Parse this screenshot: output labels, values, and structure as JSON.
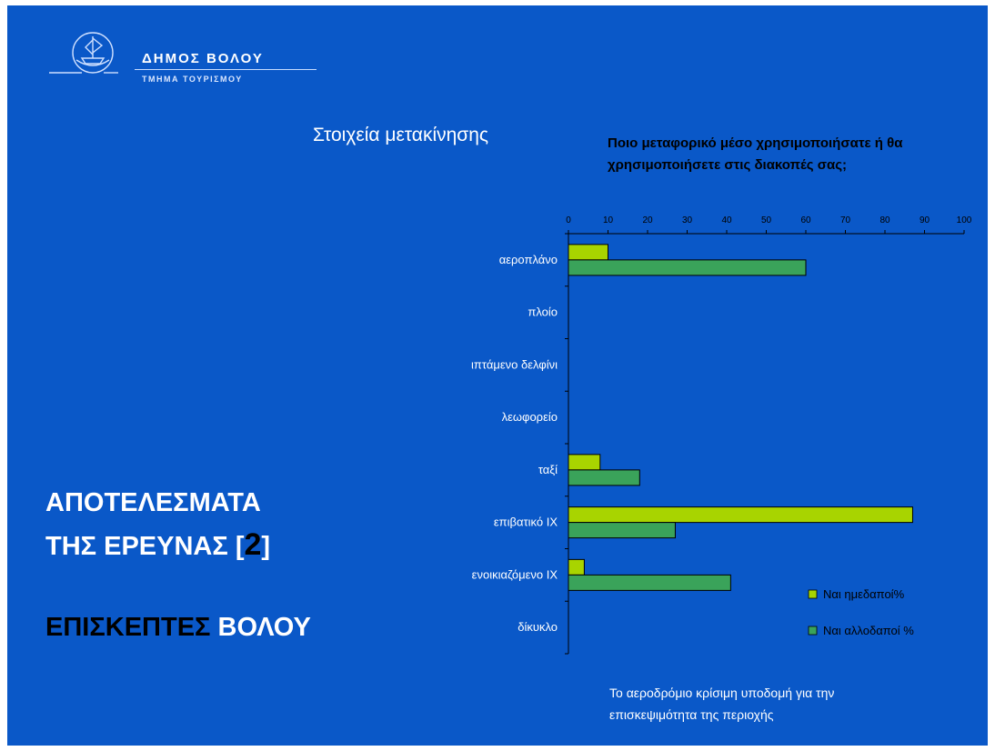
{
  "header": {
    "org_name": "ΔΗΜΟΣ ΒΟΛΟΥ",
    "org_dept": "ΤΜΗΜΑ ΤΟΥΡΙΣΜΟΥ",
    "logo_icon": "ship-emblem-icon"
  },
  "section_title": "Στοιχεία μετακίνησης",
  "results_title": {
    "line1": "ΑΠΟΤΕΛΕΣΜΑΤΑ",
    "line2_prefix": "ΤΗΣ ΕΡΕΥΝΑΣ [",
    "line2_number": "2",
    "line2_suffix": "]"
  },
  "visitors_title": {
    "part1": "ΕΠΙΣΚΕΠΤΕΣ",
    "part2": "ΒΟΛΟΥ"
  },
  "footer_note": "Το αεροδρόμιο κρίσιμη υποδομή για την επισκεψιμότητα της περιοχής",
  "colors": {
    "background": "#0a58c8",
    "series_domestic": "#a8d400",
    "series_foreign": "#3aa35a"
  },
  "chart_data": {
    "type": "bar",
    "orientation": "horizontal",
    "title": "Ποιο μεταφορικό μέσο χρησιμοποιήσατε ή θα χρησιμοποιήσετε στις διακοπές σας;",
    "categories": [
      "αεροπλάνο",
      "πλοίο",
      "ιπτάμενο δελφίνι",
      "λεωφορείο",
      "ταξί",
      "επιβατικό ΙΧ",
      "ενοικιαζόμενο ΙΧ",
      "δίκυκλο"
    ],
    "series": [
      {
        "name": "Ναι  ημεδαποί%",
        "color": "#a8d400",
        "values": [
          10,
          0,
          0,
          0,
          8,
          87,
          4,
          0
        ]
      },
      {
        "name": "Ναι αλλοδαποί %",
        "color": "#3aa35a",
        "values": [
          60,
          0,
          0,
          0,
          18,
          27,
          41,
          0
        ]
      }
    ],
    "xlim": [
      0,
      100
    ],
    "xticks": [
      "0",
      "10",
      "20",
      "30",
      "40",
      "50",
      "60",
      "70",
      "80",
      "90",
      "100"
    ],
    "grid": false,
    "legend": "bottom-right"
  }
}
